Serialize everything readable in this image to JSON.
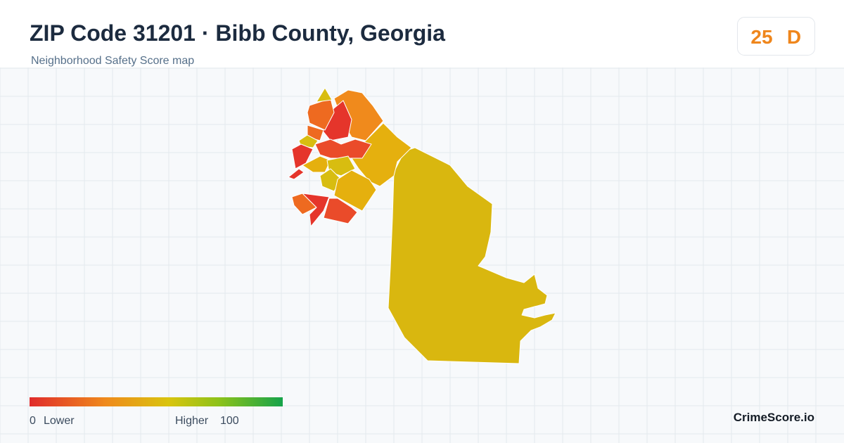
{
  "header": {
    "title": "ZIP Code 31201 · Bibb County, Georgia",
    "subtitle": "Neighborhood Safety Score map"
  },
  "score": {
    "value": 25,
    "grade": "D"
  },
  "legend": {
    "min": 0,
    "low_label": "Lower",
    "high_label": "Higher",
    "max": 100
  },
  "brand": "CrimeScore.io"
}
